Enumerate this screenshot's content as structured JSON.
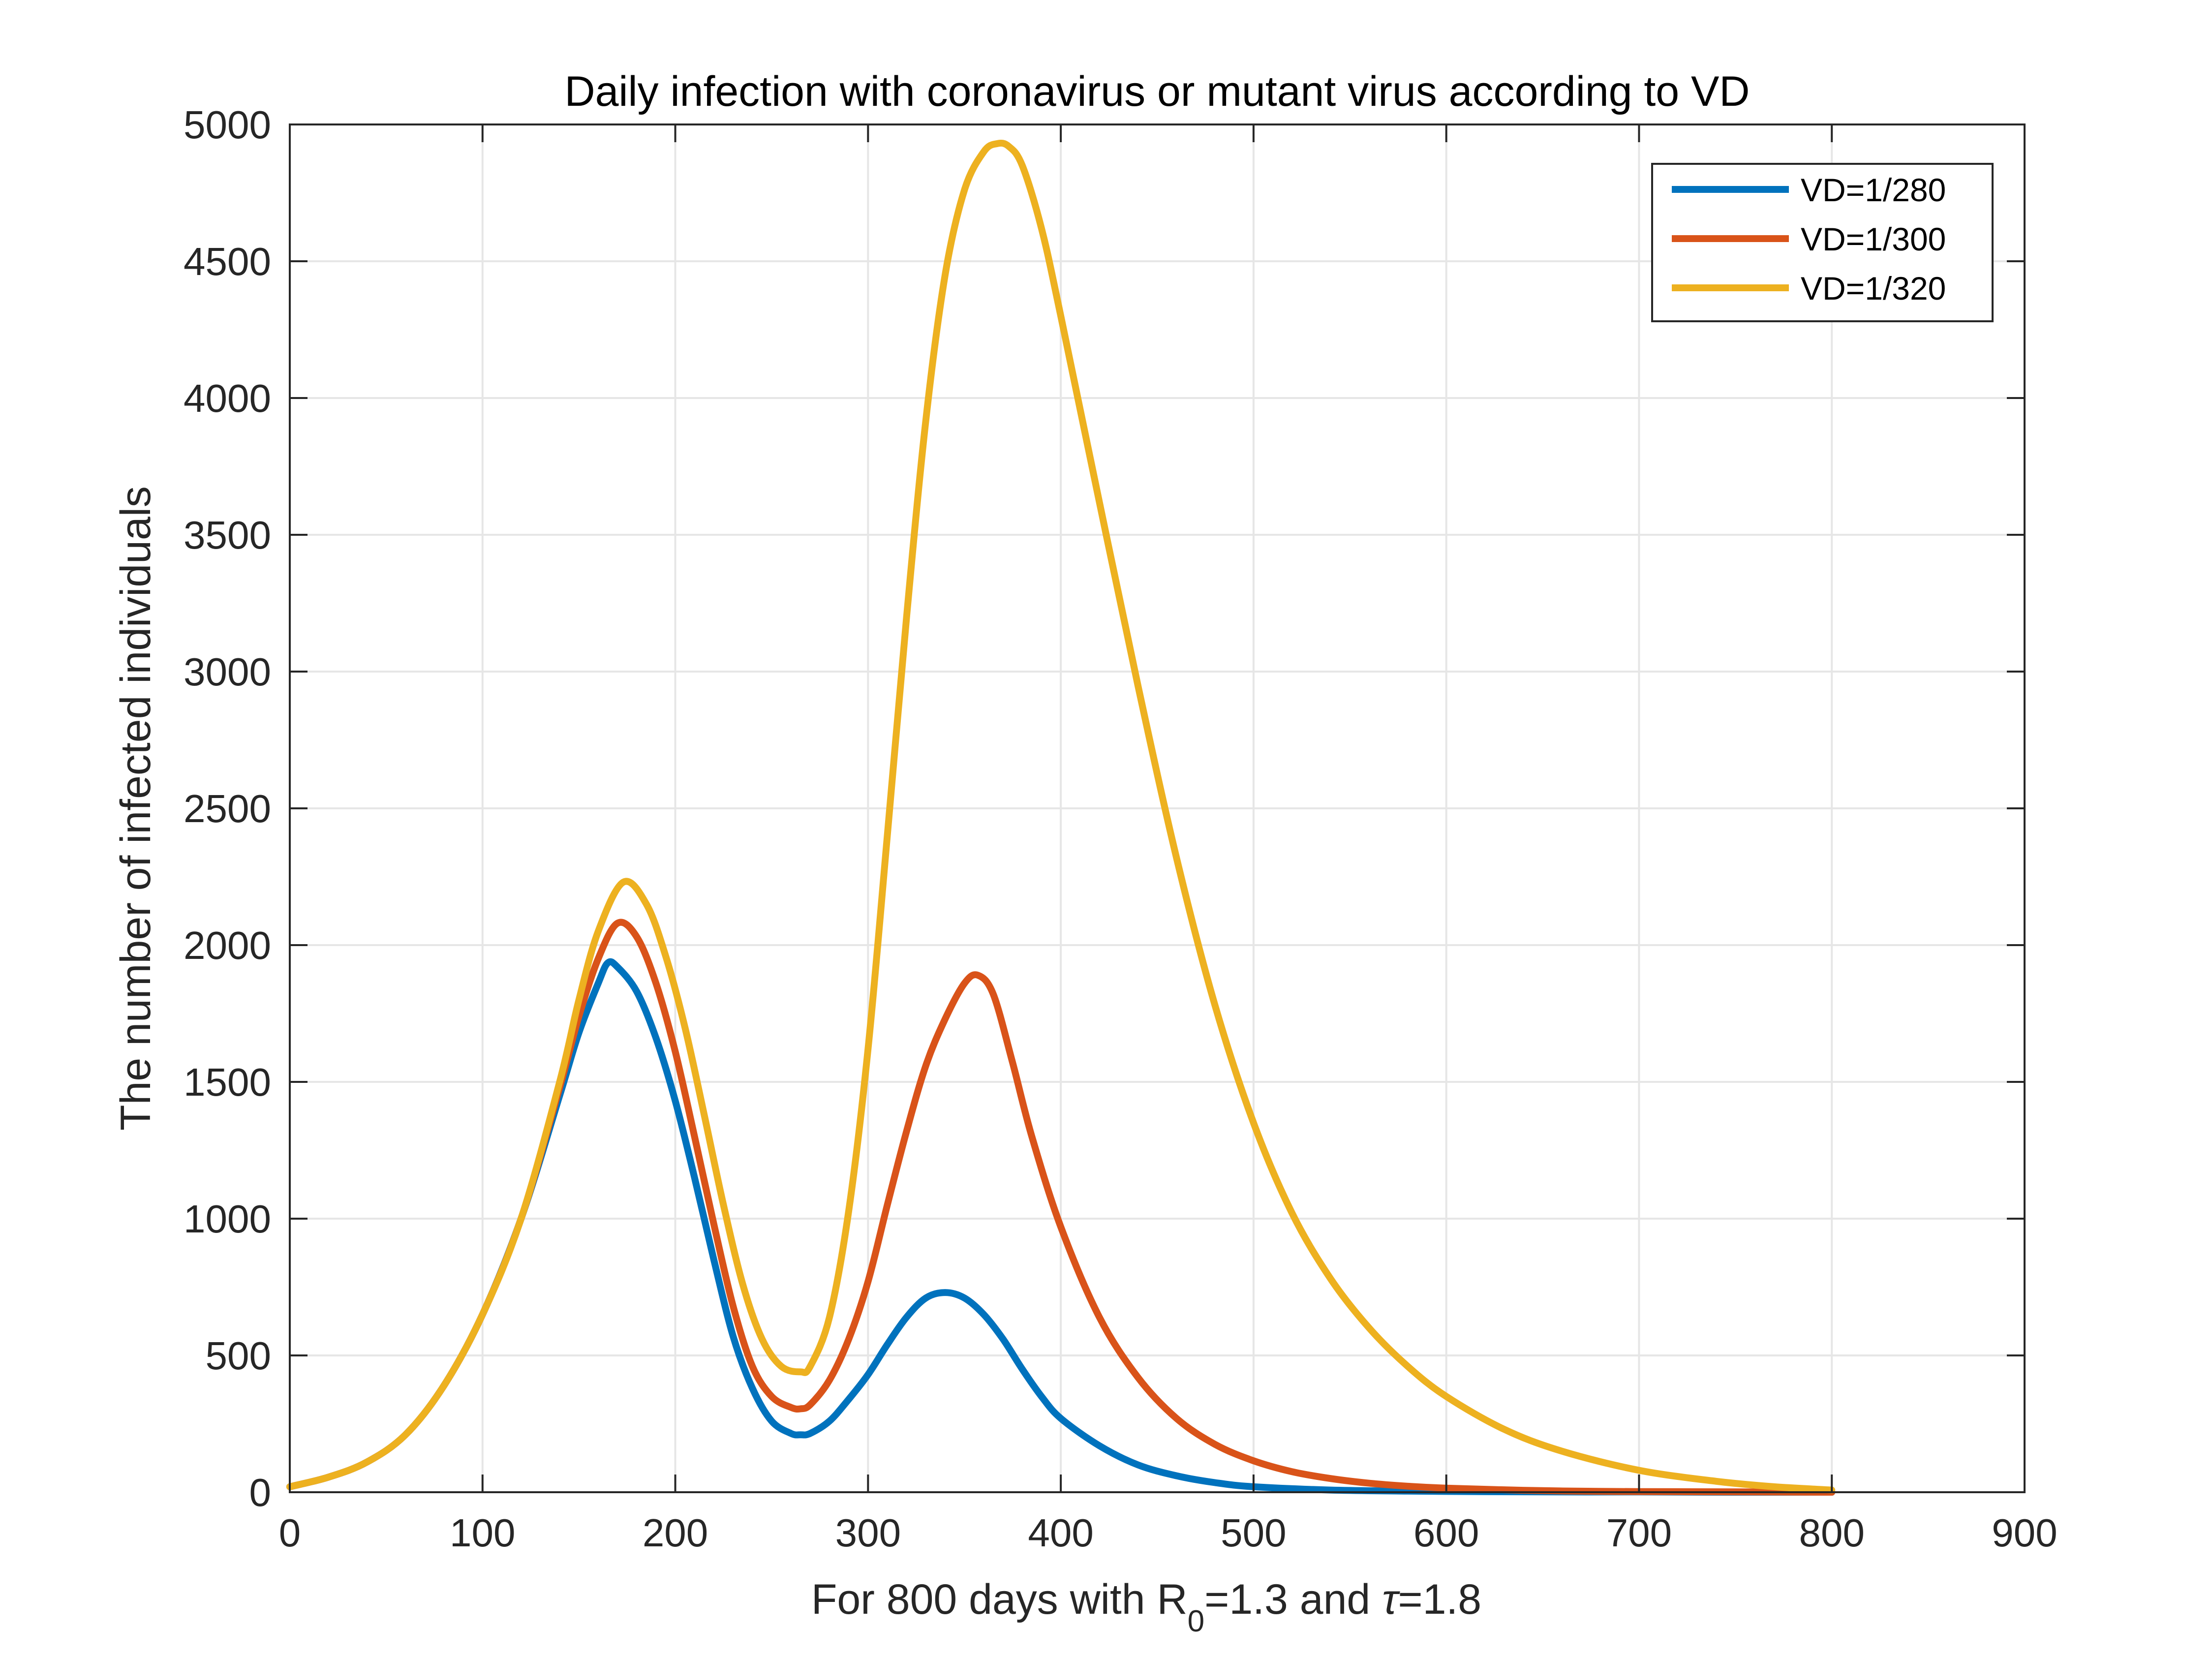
{
  "chart_data": {
    "type": "line",
    "title": "Daily infection with coronavirus or mutant virus according to VD",
    "xlabel": {
      "prefix": "For 800 days with R",
      "subscript": "0",
      "middle": "=1.3 and ",
      "symbol": "τ",
      "suffix": "=1.8"
    },
    "ylabel": "The number of infected individuals",
    "xlim": [
      0,
      900
    ],
    "ylim": [
      0,
      5000
    ],
    "xticks": [
      "0",
      "100",
      "200",
      "300",
      "400",
      "500",
      "600",
      "700",
      "800",
      "900"
    ],
    "yticks": [
      "0",
      "500",
      "1000",
      "1500",
      "2000",
      "2500",
      "3000",
      "3500",
      "4000",
      "4500",
      "5000"
    ],
    "grid": true,
    "legend_position": "top-right",
    "series": [
      {
        "name": "VD=1/280",
        "color": "#0072BD",
        "x": [
          0,
          20,
          40,
          60,
          80,
          100,
          120,
          140,
          150,
          160,
          165,
          170,
          180,
          190,
          200,
          210,
          220,
          230,
          240,
          250,
          260,
          265,
          270,
          280,
          290,
          300,
          310,
          320,
          330,
          340,
          350,
          360,
          370,
          380,
          390,
          400,
          420,
          440,
          460,
          480,
          500,
          540,
          580,
          620,
          660,
          700,
          750,
          800
        ],
        "y": [
          20,
          55,
          110,
          210,
          390,
          650,
          1000,
          1450,
          1680,
          1860,
          1935,
          1920,
          1830,
          1660,
          1430,
          1150,
          850,
          570,
          380,
          260,
          215,
          210,
          215,
          260,
          340,
          430,
          540,
          640,
          710,
          730,
          710,
          650,
          560,
          450,
          350,
          270,
          170,
          100,
          60,
          35,
          20,
          8,
          4,
          2,
          1,
          1,
          0,
          0
        ]
      },
      {
        "name": "VD=1/300",
        "color": "#D95319",
        "x": [
          0,
          20,
          40,
          60,
          80,
          100,
          120,
          140,
          150,
          160,
          170,
          180,
          190,
          200,
          210,
          220,
          230,
          240,
          250,
          260,
          265,
          270,
          280,
          290,
          300,
          310,
          320,
          330,
          340,
          350,
          357,
          365,
          375,
          385,
          400,
          420,
          440,
          460,
          480,
          500,
          520,
          540,
          560,
          580,
          600,
          640,
          680,
          720,
          760,
          800
        ],
        "y": [
          20,
          55,
          110,
          210,
          390,
          650,
          1000,
          1480,
          1740,
          1950,
          2080,
          2030,
          1860,
          1610,
          1300,
          980,
          680,
          460,
          350,
          310,
          305,
          320,
          410,
          560,
          770,
          1050,
          1320,
          1560,
          1730,
          1860,
          1890,
          1820,
          1570,
          1300,
          970,
          640,
          420,
          270,
          175,
          115,
          75,
          50,
          33,
          22,
          15,
          7,
          3,
          2,
          1,
          0
        ]
      },
      {
        "name": "VD=1/320",
        "color": "#EDB120",
        "x": [
          0,
          20,
          40,
          60,
          80,
          100,
          120,
          140,
          150,
          160,
          173,
          185,
          195,
          205,
          215,
          225,
          235,
          245,
          255,
          265,
          270,
          280,
          290,
          300,
          310,
          320,
          330,
          340,
          350,
          360,
          367,
          373,
          380,
          390,
          400,
          420,
          440,
          460,
          480,
          500,
          520,
          540,
          560,
          580,
          600,
          630,
          660,
          700,
          740,
          770,
          800
        ],
        "y": [
          20,
          55,
          110,
          210,
          390,
          650,
          1000,
          1500,
          1800,
          2050,
          2230,
          2150,
          1960,
          1700,
          1380,
          1050,
          760,
          560,
          460,
          440,
          460,
          640,
          1030,
          1620,
          2400,
          3200,
          3920,
          4450,
          4760,
          4900,
          4930,
          4920,
          4850,
          4620,
          4300,
          3620,
          2950,
          2320,
          1780,
          1350,
          1020,
          780,
          600,
          460,
          350,
          230,
          150,
          80,
          40,
          20,
          8
        ]
      }
    ]
  }
}
